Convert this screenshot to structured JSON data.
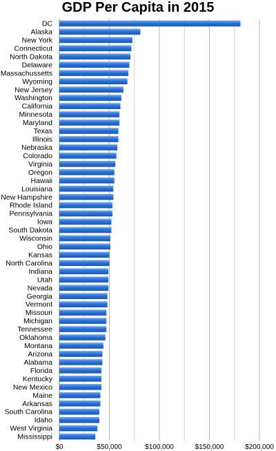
{
  "chart_data": {
    "type": "bar",
    "orientation": "horizontal",
    "title": "GDP Per Capita in 2015",
    "xlabel": "",
    "ylabel": "",
    "xlim": [
      0,
      200000
    ],
    "grid": true,
    "x_ticks": [
      {
        "value": 0,
        "label": "$0"
      },
      {
        "value": 50000,
        "label": "$50,000"
      },
      {
        "value": 100000,
        "label": "$100,000"
      },
      {
        "value": 150000,
        "label": "$150,000"
      },
      {
        "value": 200000,
        "label": "$200,000"
      }
    ],
    "bar_color": "#2a73d9",
    "categories": [
      "DC",
      "Alaska",
      "New York",
      "Connecticut",
      "North Dakota",
      "Delaware",
      "Massachussetts",
      "Wyoming",
      "New Jersey",
      "Washington",
      "California",
      "Minnesota",
      "Maryland",
      "Texas",
      "Illinois",
      "Nebraska",
      "Colorado",
      "Virginia",
      "Oregon",
      "Hawaii",
      "Louisiana",
      "New Hampshire",
      "Rhode Island",
      "Pennsylvania",
      "Iowa",
      "South Dakota",
      "Wisconsin",
      "Ohio",
      "Kansas",
      "North Carolina",
      "Indiana",
      "Utah",
      "Nevada",
      "Georgia",
      "Vermont",
      "Missouri",
      "Michigan",
      "Tennessee",
      "Oklahoma",
      "Montana",
      "Arizona",
      "Alabama",
      "Florida",
      "Kentucky",
      "New Mexico",
      "Maine",
      "Arkansas",
      "South Carolina",
      "Idaho",
      "West Virginia",
      "Mississippi"
    ],
    "values": [
      181000,
      81000,
      73000,
      72000,
      71000,
      70000,
      69000,
      68000,
      64000,
      62000,
      61000,
      60000,
      60000,
      59000,
      59000,
      58000,
      57000,
      56000,
      55000,
      55000,
      54000,
      54000,
      53000,
      53000,
      52000,
      52000,
      51000,
      51000,
      50000,
      50000,
      49000,
      49000,
      49000,
      48000,
      48000,
      47000,
      47000,
      47000,
      46000,
      44000,
      43000,
      43000,
      42000,
      42000,
      42000,
      41000,
      41000,
      40000,
      40000,
      38000,
      36000
    ]
  }
}
